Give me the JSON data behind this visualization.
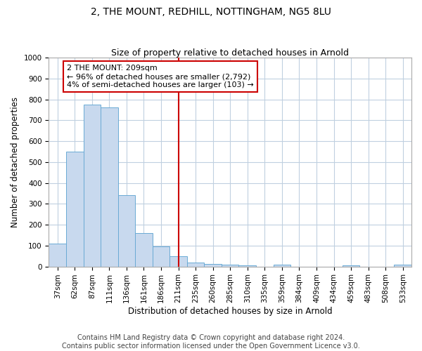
{
  "title": "2, THE MOUNT, REDHILL, NOTTINGHAM, NG5 8LU",
  "subtitle": "Size of property relative to detached houses in Arnold",
  "xlabel": "Distribution of detached houses by size in Arnold",
  "ylabel": "Number of detached properties",
  "bar_labels": [
    "37sqm",
    "62sqm",
    "87sqm",
    "111sqm",
    "136sqm",
    "161sqm",
    "186sqm",
    "211sqm",
    "235sqm",
    "260sqm",
    "285sqm",
    "310sqm",
    "335sqm",
    "359sqm",
    "384sqm",
    "409sqm",
    "434sqm",
    "459sqm",
    "483sqm",
    "508sqm",
    "533sqm"
  ],
  "bar_values": [
    110,
    550,
    775,
    760,
    340,
    160,
    97,
    50,
    18,
    13,
    10,
    6,
    0,
    8,
    0,
    0,
    0,
    5,
    0,
    0,
    8
  ],
  "bar_color": "#c8d9ee",
  "bar_edge_color": "#6aaad4",
  "vline_x_index": 7,
  "vline_color": "#cc0000",
  "annotation_line1": "2 THE MOUNT: 209sqm",
  "annotation_line2": "← 96% of detached houses are smaller (2,792)",
  "annotation_line3": "4% of semi-detached houses are larger (103) →",
  "annotation_box_color": "#ffffff",
  "annotation_box_edge": "#cc0000",
  "ylim": [
    0,
    1000
  ],
  "yticks": [
    0,
    100,
    200,
    300,
    400,
    500,
    600,
    700,
    800,
    900,
    1000
  ],
  "footer_line1": "Contains HM Land Registry data © Crown copyright and database right 2024.",
  "footer_line2": "Contains public sector information licensed under the Open Government Licence v3.0.",
  "bg_color": "#ffffff",
  "grid_color": "#c0d0e0",
  "title_fontsize": 10,
  "subtitle_fontsize": 9,
  "axis_label_fontsize": 8.5,
  "tick_fontsize": 7.5,
  "annotation_fontsize": 8,
  "footer_fontsize": 7
}
